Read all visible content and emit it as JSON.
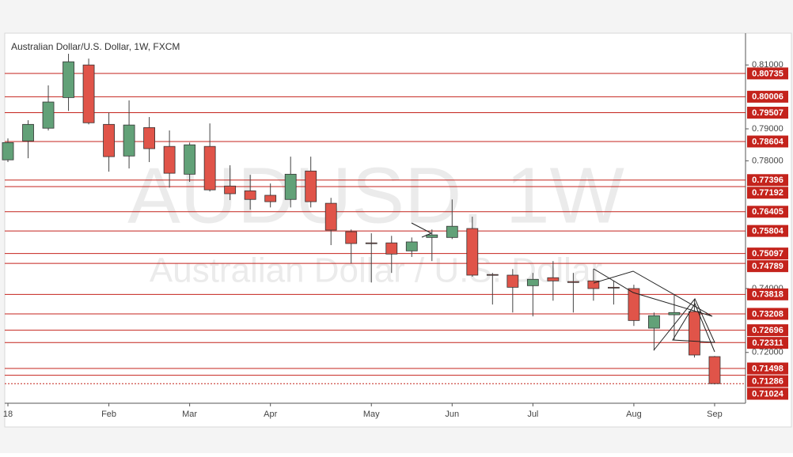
{
  "chart_data": {
    "type": "candlestick",
    "title": "Australian Dollar/U.S. Dollar, 1W, FXCM",
    "watermark": "AUDUSD, 1W",
    "watermark_subtitle": "Australian Dollar / U.S. Dollar",
    "categories": [
      null,
      null,
      null,
      null,
      null,
      null,
      null,
      null,
      null,
      null,
      null,
      null,
      null,
      null,
      null,
      null,
      null,
      null,
      null,
      null,
      null,
      null,
      null,
      null,
      null,
      null,
      null,
      null,
      null,
      null,
      null,
      null,
      null,
      null,
      null,
      null
    ],
    "open": [
      0.7803,
      0.7862,
      0.7902,
      0.7998,
      0.81,
      0.7914,
      0.7815,
      0.7904,
      0.7845,
      0.7758,
      0.7845,
      0.7721,
      0.7706,
      0.7692,
      0.7679,
      0.7768,
      0.7667,
      0.7578,
      0.7543,
      0.7543,
      0.7518,
      0.756,
      0.756,
      0.7588,
      0.7444,
      0.7442,
      0.7409,
      0.7434,
      0.7422,
      0.7424,
      0.7404,
      0.74,
      0.7276,
      0.7318,
      0.7328,
      0.7187
    ],
    "high": [
      0.787,
      0.7927,
      0.8036,
      0.8135,
      0.812,
      0.7951,
      0.7989,
      0.7937,
      0.7895,
      0.7857,
      0.7917,
      0.7786,
      0.7756,
      0.7729,
      0.7813,
      0.7813,
      0.7684,
      0.7585,
      0.7573,
      0.7565,
      0.756,
      0.7585,
      0.7679,
      0.7625,
      0.7449,
      0.7461,
      0.7449,
      0.7486,
      0.7449,
      0.7461,
      0.7424,
      0.7412,
      0.7325,
      0.7382,
      0.7367,
      0.7189
    ],
    "low": [
      0.7796,
      0.7808,
      0.7895,
      0.7956,
      0.7914,
      0.7766,
      0.7776,
      0.7796,
      0.7716,
      0.7734,
      0.7704,
      0.7677,
      0.7647,
      0.7654,
      0.7654,
      0.7654,
      0.7536,
      0.7479,
      0.7419,
      0.7449,
      0.7499,
      0.7486,
      0.7555,
      0.7437,
      0.735,
      0.7325,
      0.7313,
      0.7362,
      0.7325,
      0.7362,
      0.735,
      0.7283,
      0.7206,
      0.7239,
      0.7184,
      0.71
    ],
    "close": [
      0.7857,
      0.7914,
      0.7984,
      0.811,
      0.7919,
      0.7813,
      0.7912,
      0.7838,
      0.7761,
      0.785,
      0.7709,
      0.7697,
      0.7679,
      0.7672,
      0.7758,
      0.7672,
      0.7583,
      0.7541,
      0.7541,
      0.7508,
      0.7546,
      0.7568,
      0.7595,
      0.7442,
      0.7442,
      0.7404,
      0.7429,
      0.7424,
      0.7419,
      0.74,
      0.7402,
      0.73,
      0.7315,
      0.7325,
      0.7192,
      0.71024
    ],
    "up_color": "#62a178",
    "down_color": "#e05449",
    "level_color": "#c4231c",
    "levels": [
      0.80735,
      0.80006,
      0.79507,
      0.78604,
      0.77396,
      0.77192,
      0.76405,
      0.75804,
      0.75097,
      0.74789,
      0.73818,
      0.73208,
      0.72696,
      0.72311,
      0.71498,
      0.71286
    ],
    "last_price": 0.71024,
    "xlim": [
      -0.157,
      36.53
    ],
    "xticks": [
      {
        "value": 0,
        "label": "18"
      },
      {
        "value": 5,
        "label": "Feb"
      },
      {
        "value": 9,
        "label": "Mar"
      },
      {
        "value": 13,
        "label": "Apr"
      },
      {
        "value": 18,
        "label": "May"
      },
      {
        "value": 22,
        "label": "Jun"
      },
      {
        "value": 26,
        "label": "Jul"
      },
      {
        "value": 31,
        "label": "Aug"
      },
      {
        "value": 35,
        "label": "Sep"
      }
    ],
    "ylim": [
      0.7041,
      0.8192
    ],
    "yticks": [
      {
        "value": 0.81,
        "label": "0.81000"
      },
      {
        "value": 0.79,
        "label": "0.79000"
      },
      {
        "value": 0.78,
        "label": "0.78000"
      },
      {
        "value": 0.74,
        "label": "0.74000"
      },
      {
        "value": 0.72,
        "label": "0.72000"
      }
    ]
  }
}
